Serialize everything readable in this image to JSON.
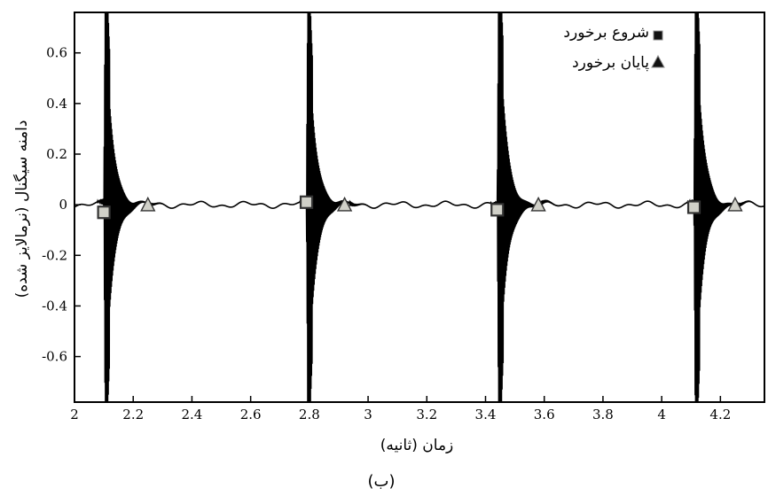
{
  "chart_data": {
    "type": "line",
    "title": "",
    "xlabel": "زمان (ثانیه)",
    "ylabel": "دامنه سیگنال (نرمالایز شده)",
    "caption": "(ب)",
    "xlim": [
      2.0,
      4.35
    ],
    "ylim": [
      -0.78,
      0.76
    ],
    "xticks": [
      2,
      2.2,
      2.4,
      2.6,
      2.8,
      3,
      3.2,
      3.4,
      3.6,
      3.8,
      4,
      4.2
    ],
    "xtick_labels": [
      "2",
      "2.2",
      "2.4",
      "2.6",
      "2.8",
      "3",
      "3.2",
      "3.4",
      "3.6",
      "3.8",
      "4",
      "4.2"
    ],
    "yticks": [
      0.6,
      0.4,
      0.2,
      0,
      -0.2,
      -0.4,
      -0.6
    ],
    "ytick_labels": [
      "0.6",
      "0.4",
      "0.2",
      "0",
      "-0.2",
      "-0.4",
      "-0.6"
    ],
    "grid": false,
    "legend_position": "top-right",
    "signal_color": "#000000",
    "impacts": [
      {
        "onset": 2.1,
        "peak": 0.72,
        "end": 2.25
      },
      {
        "onset": 2.79,
        "peak": 0.71,
        "end": 2.92
      },
      {
        "onset": 3.44,
        "peak": 0.75,
        "end": 3.58
      },
      {
        "onset": 4.11,
        "peak": 0.74,
        "end": 4.25
      }
    ],
    "series": [
      {
        "name": "شروع برخورد",
        "marker": "square",
        "color": "#d0d0c8",
        "edge": "#333333",
        "x": [
          2.1,
          2.79,
          3.44,
          4.11
        ],
        "y": [
          -0.03,
          0.01,
          -0.02,
          -0.01
        ]
      },
      {
        "name": "پایان برخورد",
        "marker": "triangle",
        "color": "#d0d0c8",
        "edge": "#333333",
        "x": [
          2.25,
          2.92,
          3.58,
          4.25
        ],
        "y": [
          0.0,
          0.0,
          0.0,
          0.0
        ]
      }
    ]
  }
}
